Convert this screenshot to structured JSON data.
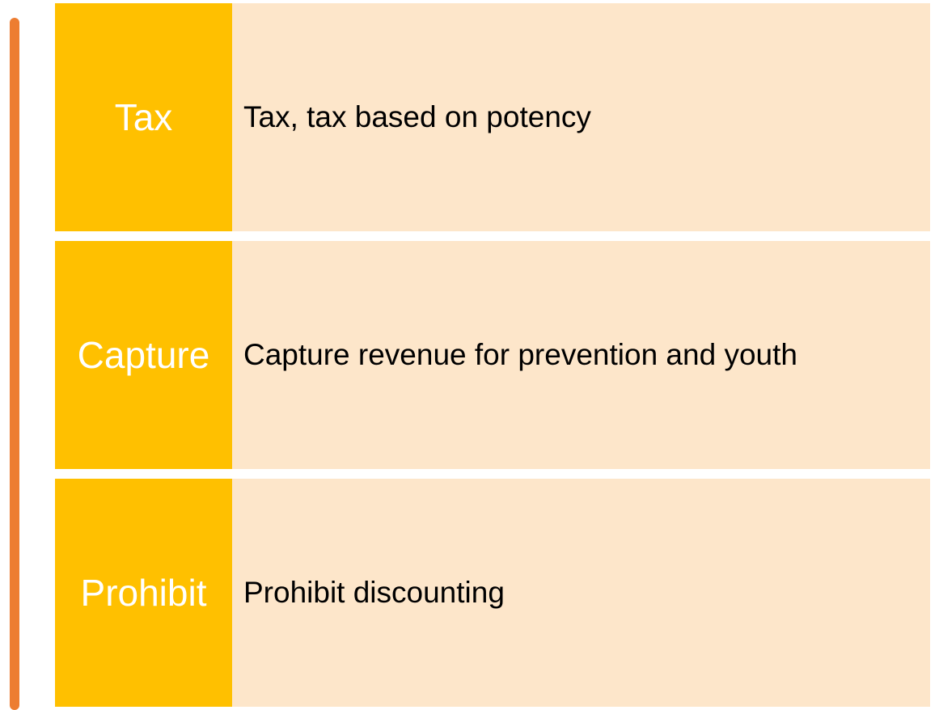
{
  "rows": [
    {
      "label": "Tax",
      "text": "Tax, tax based on potency"
    },
    {
      "label": "Capture",
      "text": "Capture revenue for prevention and youth"
    },
    {
      "label": "Prohibit",
      "text": "Prohibit discounting"
    }
  ]
}
